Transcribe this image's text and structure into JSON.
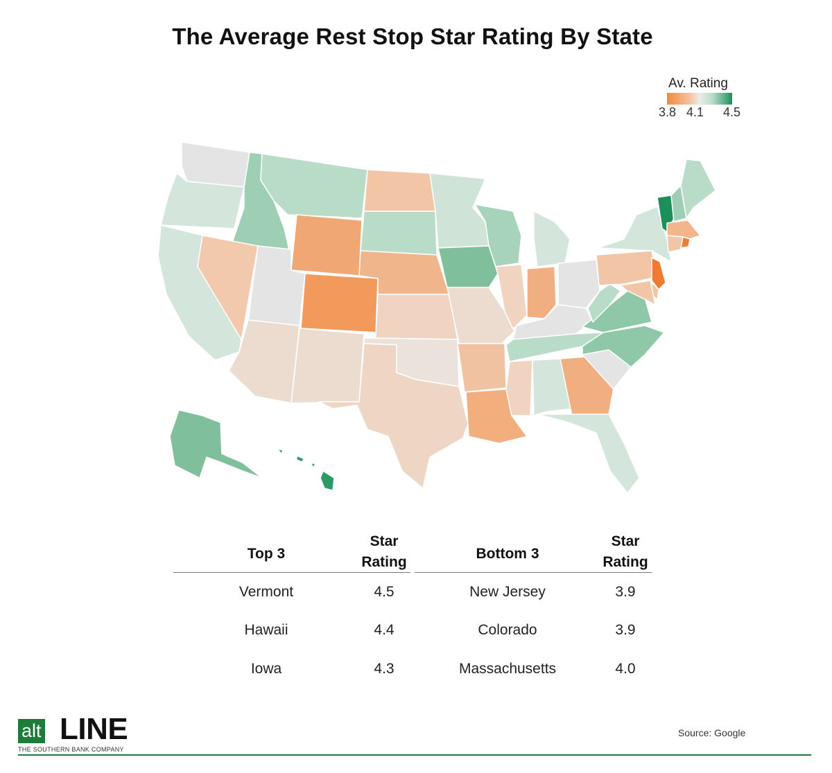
{
  "title": "The Average Rest Stop Star Rating By State",
  "legend": {
    "title": "Av. Rating",
    "ticks": [
      "3.8",
      "4.1",
      "4.5"
    ],
    "colors": {
      "low": "#f08a3c",
      "mid": "#eceaea",
      "high": "#1c8f5a"
    }
  },
  "map_states": {
    "WA": {
      "color": "#e4e4e4"
    },
    "OR": {
      "color": "#d4e6dc"
    },
    "CA": {
      "color": "#d4e6dc"
    },
    "ID": {
      "color": "#9ecfb4"
    },
    "NV": {
      "color": "#f2c9ad"
    },
    "MT": {
      "color": "#b8dcc8"
    },
    "WY": {
      "color": "#f1a774"
    },
    "UT": {
      "color": "#e4e4e4"
    },
    "AZ": {
      "color": "#ecdbcf"
    },
    "CO": {
      "color": "#f29a5c"
    },
    "NM": {
      "color": "#ecdbcf"
    },
    "ND": {
      "color": "#f2c5a6"
    },
    "SD": {
      "color": "#b8dcc8"
    },
    "NE": {
      "color": "#f1b58c"
    },
    "KS": {
      "color": "#f0d3c0"
    },
    "OK": {
      "color": "#ece2dc"
    },
    "TX": {
      "color": "#efd5c3"
    },
    "MN": {
      "color": "#cfe3d7"
    },
    "IA": {
      "color": "#7fbf9c"
    },
    "MO": {
      "color": "#ecdbcf"
    },
    "AR": {
      "color": "#f1c2a2"
    },
    "LA": {
      "color": "#f2ae7d"
    },
    "WI": {
      "color": "#a8d3bb"
    },
    "IL": {
      "color": "#f0d3c0"
    },
    "MI": {
      "color": "#d4e6dc"
    },
    "IN": {
      "color": "#f1ae80"
    },
    "OH": {
      "color": "#e4e4e4"
    },
    "KY": {
      "color": "#e4e4e4"
    },
    "TN": {
      "color": "#b8dcc8"
    },
    "MS": {
      "color": "#f0d3c0"
    },
    "AL": {
      "color": "#d4e6dc"
    },
    "GA": {
      "color": "#f1ae80"
    },
    "FL": {
      "color": "#d4e6dc"
    },
    "SC": {
      "color": "#e4e4e4"
    },
    "NC": {
      "color": "#8ec8a8"
    },
    "VA": {
      "color": "#8ec8a8"
    },
    "WV": {
      "color": "#b8dcc8"
    },
    "PA": {
      "color": "#f2c5a6"
    },
    "NY": {
      "color": "#d4e6dc"
    },
    "VT": {
      "color": "#1c8f5a"
    },
    "NH": {
      "color": "#9ecfb4"
    },
    "ME": {
      "color": "#b8dcc8"
    },
    "MA": {
      "color": "#f2b58c"
    },
    "RI": {
      "color": "#f07d35"
    },
    "CT": {
      "color": "#f2c5a6"
    },
    "NJ": {
      "color": "#f07a30"
    },
    "DE": {
      "color": "#f2c5a6"
    },
    "MD": {
      "color": "#f2c5a6"
    },
    "AK": {
      "color": "#7fbf9c"
    },
    "HI": {
      "color": "#2f9a68"
    }
  },
  "table": {
    "top_header": "Top 3",
    "bottom_header": "Bottom 3",
    "rating_header_line1": "Star",
    "rating_header_line2": "Rating",
    "top": [
      {
        "state": "Vermont",
        "rating": "4.5"
      },
      {
        "state": "Hawaii",
        "rating": "4.4"
      },
      {
        "state": "Iowa",
        "rating": "4.3"
      }
    ],
    "bottom": [
      {
        "state": "New Jersey",
        "rating": "3.9"
      },
      {
        "state": "Colorado",
        "rating": "3.9"
      },
      {
        "state": "Massachusetts",
        "rating": "4.0"
      }
    ]
  },
  "logo": {
    "alt": "alt",
    "line": "LINE",
    "subtitle": "THE SOUTHERN BANK COMPANY"
  },
  "source": "Source: Google"
}
